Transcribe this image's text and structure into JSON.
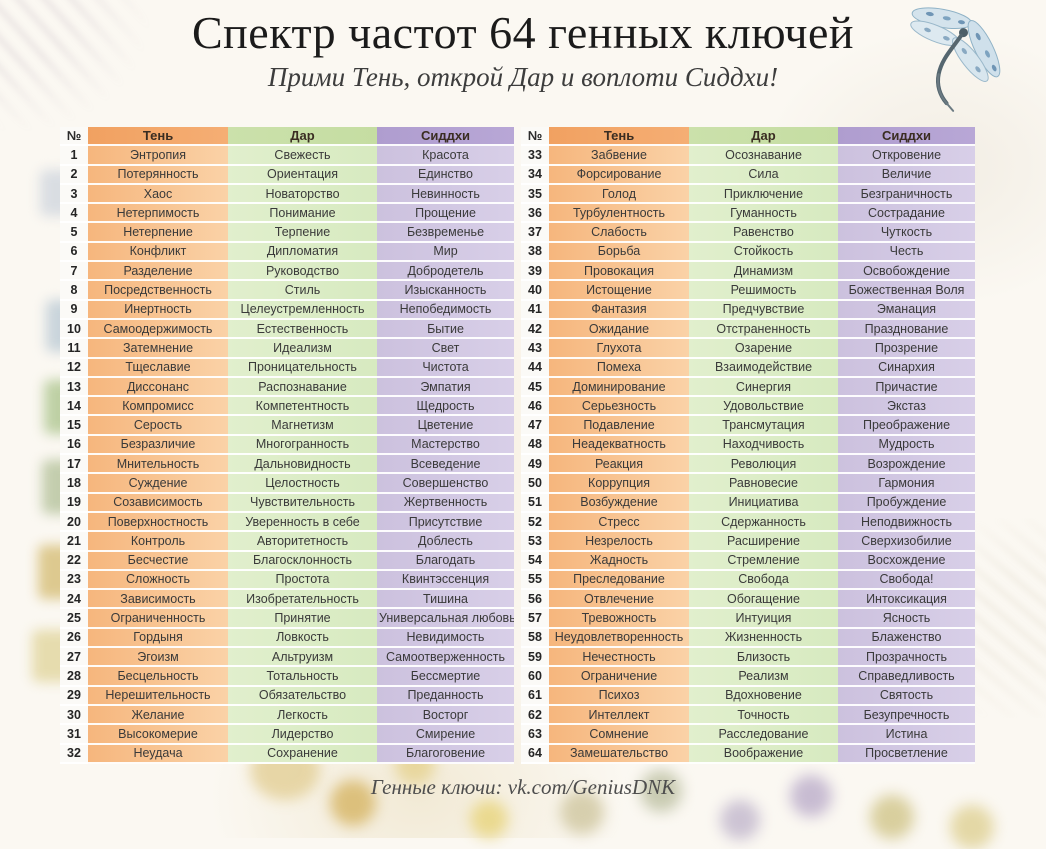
{
  "page": {
    "title": "Спектр частот 64 генных ключей",
    "subtitle": "Прими Тень, открой Дар и воплоти Сиддхи!",
    "footer": "Генные ключи: vk.com/GeniusDNK"
  },
  "palette": {
    "shadow_header": "#f1a161",
    "shadow_cell": "#f8c492",
    "gift_header": "#c8dfa7",
    "gift_cell": "#dcecc6",
    "siddhi_header": "#b3a1d2",
    "siddhi_cell": "#d2c8e3",
    "number_cell": "#fbfaf7",
    "text": "#3a3a3a"
  },
  "table": {
    "headers": [
      "№",
      "Тень",
      "Дар",
      "Сиддхи"
    ],
    "keys": [
      [
        "1",
        "Энтропия",
        "Свежесть",
        "Красота"
      ],
      [
        "2",
        "Потерянность",
        "Ориентация",
        "Единство"
      ],
      [
        "3",
        "Хаос",
        "Новаторство",
        "Невинность"
      ],
      [
        "4",
        "Нетерпимость",
        "Понимание",
        "Прощение"
      ],
      [
        "5",
        "Нетерпение",
        "Терпение",
        "Безвременье"
      ],
      [
        "6",
        "Конфликт",
        "Дипломатия",
        "Мир"
      ],
      [
        "7",
        "Разделение",
        "Руководство",
        "Добродетель"
      ],
      [
        "8",
        "Посредственность",
        "Стиль",
        "Изысканность"
      ],
      [
        "9",
        "Инертность",
        "Целеустремленность",
        "Непобедимость"
      ],
      [
        "10",
        "Самоодержимость",
        "Естественность",
        "Бытие"
      ],
      [
        "11",
        "Затемнение",
        "Идеализм",
        "Свет"
      ],
      [
        "12",
        "Тщеславие",
        "Проницательность",
        "Чистота"
      ],
      [
        "13",
        "Диссонанс",
        "Распознавание",
        "Эмпатия"
      ],
      [
        "14",
        "Компромисс",
        "Компетентность",
        "Щедрость"
      ],
      [
        "15",
        "Серость",
        "Магнетизм",
        "Цветение"
      ],
      [
        "16",
        "Безразличие",
        "Многогранность",
        "Мастерство"
      ],
      [
        "17",
        "Мнительность",
        "Дальновидность",
        "Всеведение"
      ],
      [
        "18",
        "Суждение",
        "Целостность",
        "Совершенство"
      ],
      [
        "19",
        "Созависимость",
        "Чувствительность",
        "Жертвенность"
      ],
      [
        "20",
        "Поверхностность",
        "Уверенность в себе",
        "Присутствие"
      ],
      [
        "21",
        "Контроль",
        "Авторитетность",
        "Доблесть"
      ],
      [
        "22",
        "Бесчестие",
        "Благосклонность",
        "Благодать"
      ],
      [
        "23",
        "Сложность",
        "Простота",
        "Квинтэссенция"
      ],
      [
        "24",
        "Зависимость",
        "Изобретательность",
        "Тишина"
      ],
      [
        "25",
        "Ограниченность",
        "Принятие",
        "Универсальная любовь"
      ],
      [
        "26",
        "Гордыня",
        "Ловкость",
        "Невидимость"
      ],
      [
        "27",
        "Эгоизм",
        "Альтруизм",
        "Самоотверженность"
      ],
      [
        "28",
        "Бесцельность",
        "Тотальность",
        "Бессмертие"
      ],
      [
        "29",
        "Нерешительность",
        "Обязательство",
        "Преданность"
      ],
      [
        "30",
        "Желание",
        "Легкость",
        "Восторг"
      ],
      [
        "31",
        "Высокомерие",
        "Лидерство",
        "Смирение"
      ],
      [
        "32",
        "Неудача",
        "Сохранение",
        "Благоговение"
      ],
      [
        "33",
        "Забвение",
        "Осознавание",
        "Откровение"
      ],
      [
        "34",
        "Форсирование",
        "Сила",
        "Величие"
      ],
      [
        "35",
        "Голод",
        "Приключение",
        "Безграничность"
      ],
      [
        "36",
        "Турбулентность",
        "Гуманность",
        "Сострадание"
      ],
      [
        "37",
        "Слабость",
        "Равенство",
        "Чуткость"
      ],
      [
        "38",
        "Борьба",
        "Стойкость",
        "Честь"
      ],
      [
        "39",
        "Провокация",
        "Динамизм",
        "Освобождение"
      ],
      [
        "40",
        "Истощение",
        "Решимость",
        "Божественная Воля"
      ],
      [
        "41",
        "Фантазия",
        "Предчувствие",
        "Эманация"
      ],
      [
        "42",
        "Ожидание",
        "Отстраненность",
        "Празднование"
      ],
      [
        "43",
        "Глухота",
        "Озарение",
        "Прозрение"
      ],
      [
        "44",
        "Помеха",
        "Взаимодействие",
        "Синархия"
      ],
      [
        "45",
        "Доминирование",
        "Синергия",
        "Причастие"
      ],
      [
        "46",
        "Серьезность",
        "Удовольствие",
        "Экстаз"
      ],
      [
        "47",
        "Подавление",
        "Трансмутация",
        "Преображение"
      ],
      [
        "48",
        "Неадекватность",
        "Находчивость",
        "Мудрость"
      ],
      [
        "49",
        "Реакция",
        "Революция",
        "Возрождение"
      ],
      [
        "50",
        "Коррупция",
        "Равновесие",
        "Гармония"
      ],
      [
        "51",
        "Возбуждение",
        "Инициатива",
        "Пробуждение"
      ],
      [
        "52",
        "Стресс",
        "Сдержанность",
        "Неподвижность"
      ],
      [
        "53",
        "Незрелость",
        "Расширение",
        "Сверхизобилие"
      ],
      [
        "54",
        "Жадность",
        "Стремление",
        "Восхождение"
      ],
      [
        "55",
        "Преследование",
        "Свобода",
        "Свобода!"
      ],
      [
        "56",
        "Отвлечение",
        "Обогащение",
        "Интоксикация"
      ],
      [
        "57",
        "Тревожность",
        "Интуиция",
        "Ясность"
      ],
      [
        "58",
        "Неудовлетворенность",
        "Жизненность",
        "Блаженство"
      ],
      [
        "59",
        "Нечестность",
        "Близость",
        "Прозрачность"
      ],
      [
        "60",
        "Ограничение",
        "Реализм",
        "Справедливость"
      ],
      [
        "61",
        "Психоз",
        "Вдохновение",
        "Святость"
      ],
      [
        "62",
        "Интеллект",
        "Точность",
        "Безупречность"
      ],
      [
        "63",
        "Сомнение",
        "Расследование",
        "Истина"
      ],
      [
        "64",
        "Замешательство",
        "Воображение",
        "Просветление"
      ]
    ]
  }
}
